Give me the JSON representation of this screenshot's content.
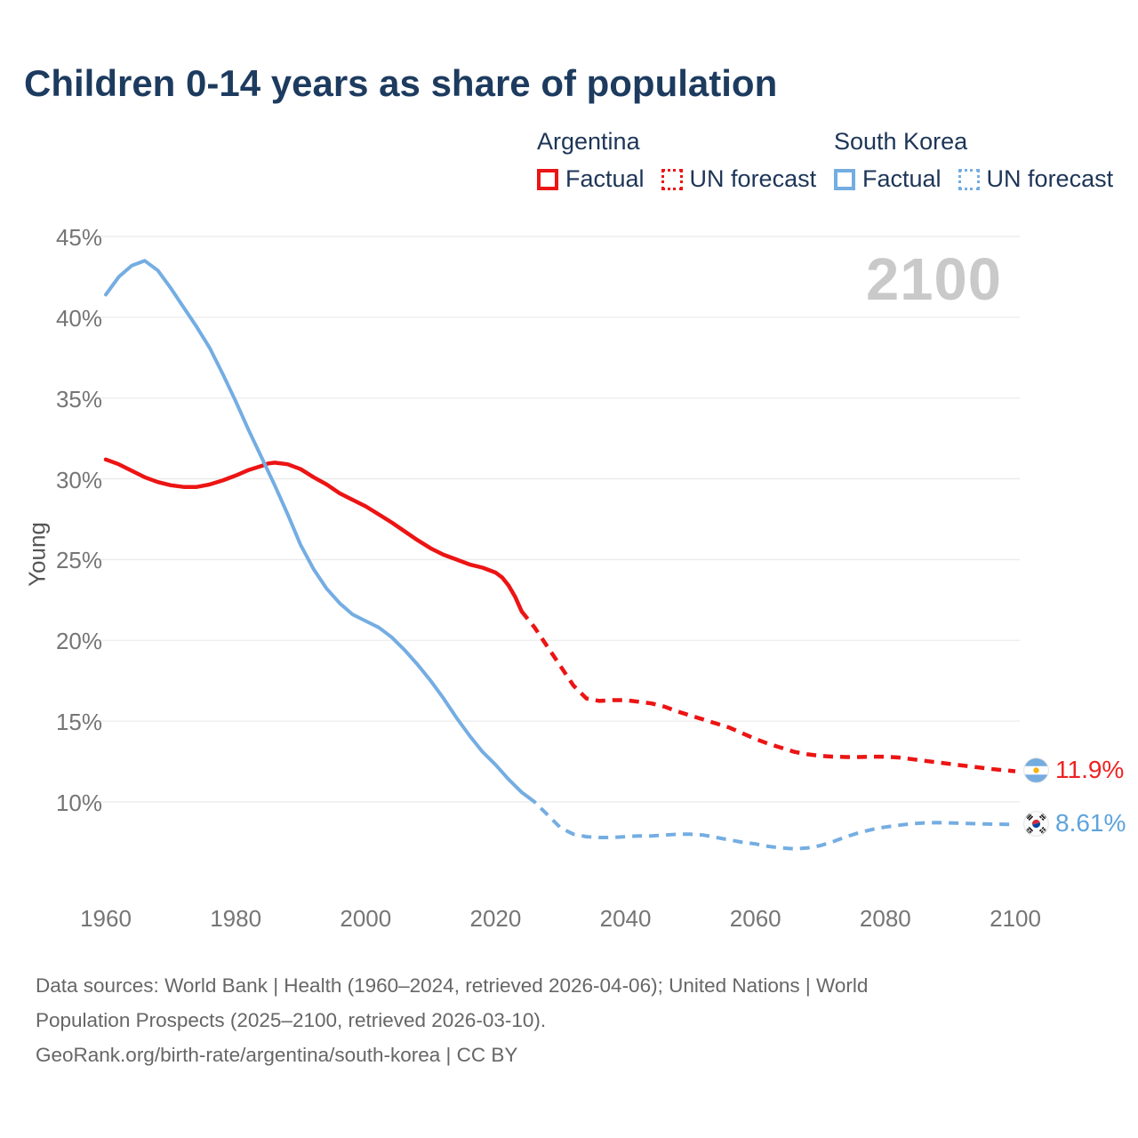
{
  "header": {
    "title": "Children 0-14 years as share of population"
  },
  "legend": {
    "groups": [
      {
        "country": "Argentina",
        "factual_label": "Factual",
        "forecast_label": "UN forecast",
        "color": "#ec1414"
      },
      {
        "country": "South Korea",
        "factual_label": "Factual",
        "forecast_label": "UN forecast",
        "color": "#74ade2"
      }
    ]
  },
  "chart": {
    "watermark": "2100",
    "y_axis_title": "Young"
  },
  "chart_data": {
    "type": "line",
    "title": "Children 0-14 years as share of population",
    "ylabel": "Young",
    "unit": "%",
    "grid": true,
    "legend_position": "top-right",
    "xlim": [
      1960,
      2100
    ],
    "ylim_gridlines": [
      10,
      45
    ],
    "x_ticks": [
      1960,
      1980,
      2000,
      2020,
      2040,
      2060,
      2080,
      2100
    ],
    "y_ticks": [
      10,
      15,
      20,
      25,
      30,
      35,
      40,
      45
    ],
    "watermark": "2100",
    "series": [
      {
        "name": "Argentina Factual",
        "color": "#ec1414",
        "style": "solid",
        "width": 4.5,
        "points": [
          [
            1960,
            31.2
          ],
          [
            1962,
            30.9
          ],
          [
            1964,
            30.5
          ],
          [
            1966,
            30.1
          ],
          [
            1968,
            29.8
          ],
          [
            1970,
            29.6
          ],
          [
            1972,
            29.5
          ],
          [
            1974,
            29.5
          ],
          [
            1976,
            29.65
          ],
          [
            1978,
            29.9
          ],
          [
            1980,
            30.2
          ],
          [
            1982,
            30.55
          ],
          [
            1984,
            30.8
          ],
          [
            1985,
            30.95
          ],
          [
            1986,
            31.0
          ],
          [
            1988,
            30.9
          ],
          [
            1990,
            30.6
          ],
          [
            1992,
            30.1
          ],
          [
            1994,
            29.65
          ],
          [
            1996,
            29.1
          ],
          [
            1998,
            28.7
          ],
          [
            2000,
            28.3
          ],
          [
            2002,
            27.8
          ],
          [
            2004,
            27.3
          ],
          [
            2006,
            26.75
          ],
          [
            2008,
            26.2
          ],
          [
            2010,
            25.7
          ],
          [
            2012,
            25.3
          ],
          [
            2014,
            25.0
          ],
          [
            2016,
            24.7
          ],
          [
            2018,
            24.5
          ],
          [
            2020,
            24.2
          ],
          [
            2021,
            23.9
          ],
          [
            2022,
            23.4
          ],
          [
            2023,
            22.7
          ],
          [
            2024,
            21.8
          ]
        ]
      },
      {
        "name": "Argentina UN forecast",
        "color": "#ec1414",
        "style": "dashed",
        "width": 4.5,
        "points": [
          [
            2024,
            21.8
          ],
          [
            2025,
            21.3
          ],
          [
            2026,
            20.8
          ],
          [
            2028,
            19.6
          ],
          [
            2030,
            18.4
          ],
          [
            2032,
            17.2
          ],
          [
            2034,
            16.4
          ],
          [
            2036,
            16.25
          ],
          [
            2038,
            16.3
          ],
          [
            2040,
            16.3
          ],
          [
            2042,
            16.2
          ],
          [
            2044,
            16.1
          ],
          [
            2046,
            15.9
          ],
          [
            2048,
            15.6
          ],
          [
            2050,
            15.35
          ],
          [
            2052,
            15.1
          ],
          [
            2054,
            14.85
          ],
          [
            2056,
            14.6
          ],
          [
            2058,
            14.25
          ],
          [
            2060,
            13.9
          ],
          [
            2062,
            13.6
          ],
          [
            2064,
            13.35
          ],
          [
            2066,
            13.1
          ],
          [
            2068,
            12.95
          ],
          [
            2070,
            12.85
          ],
          [
            2072,
            12.8
          ],
          [
            2074,
            12.78
          ],
          [
            2076,
            12.78
          ],
          [
            2078,
            12.8
          ],
          [
            2080,
            12.8
          ],
          [
            2082,
            12.75
          ],
          [
            2084,
            12.65
          ],
          [
            2086,
            12.55
          ],
          [
            2088,
            12.45
          ],
          [
            2090,
            12.35
          ],
          [
            2092,
            12.25
          ],
          [
            2094,
            12.15
          ],
          [
            2096,
            12.05
          ],
          [
            2098,
            11.97
          ],
          [
            2100,
            11.9
          ]
        ]
      },
      {
        "name": "South Korea Factual",
        "color": "#74ade2",
        "style": "solid",
        "width": 4,
        "points": [
          [
            1960,
            41.4
          ],
          [
            1962,
            42.5
          ],
          [
            1964,
            43.2
          ],
          [
            1966,
            43.5
          ],
          [
            1968,
            42.9
          ],
          [
            1970,
            41.8
          ],
          [
            1972,
            40.6
          ],
          [
            1974,
            39.4
          ],
          [
            1976,
            38.1
          ],
          [
            1978,
            36.5
          ],
          [
            1980,
            34.8
          ],
          [
            1982,
            33.0
          ],
          [
            1984,
            31.3
          ],
          [
            1986,
            29.6
          ],
          [
            1988,
            27.8
          ],
          [
            1990,
            25.9
          ],
          [
            1992,
            24.4
          ],
          [
            1994,
            23.2
          ],
          [
            1996,
            22.3
          ],
          [
            1998,
            21.6
          ],
          [
            2000,
            21.2
          ],
          [
            2002,
            20.8
          ],
          [
            2004,
            20.2
          ],
          [
            2006,
            19.4
          ],
          [
            2008,
            18.5
          ],
          [
            2010,
            17.5
          ],
          [
            2012,
            16.4
          ],
          [
            2014,
            15.2
          ],
          [
            2016,
            14.1
          ],
          [
            2018,
            13.1
          ],
          [
            2020,
            12.3
          ],
          [
            2022,
            11.4
          ],
          [
            2024,
            10.6
          ],
          [
            2025,
            10.3
          ]
        ]
      },
      {
        "name": "South Korea UN forecast",
        "color": "#74ade2",
        "style": "dashed",
        "width": 4,
        "points": [
          [
            2025,
            10.3
          ],
          [
            2026,
            10.0
          ],
          [
            2027,
            9.6
          ],
          [
            2028,
            9.2
          ],
          [
            2030,
            8.4
          ],
          [
            2032,
            8.0
          ],
          [
            2034,
            7.85
          ],
          [
            2036,
            7.8
          ],
          [
            2038,
            7.8
          ],
          [
            2040,
            7.85
          ],
          [
            2042,
            7.9
          ],
          [
            2044,
            7.9
          ],
          [
            2046,
            7.95
          ],
          [
            2048,
            8.0
          ],
          [
            2050,
            8.0
          ],
          [
            2052,
            7.95
          ],
          [
            2054,
            7.8
          ],
          [
            2056,
            7.65
          ],
          [
            2058,
            7.5
          ],
          [
            2060,
            7.4
          ],
          [
            2062,
            7.25
          ],
          [
            2064,
            7.15
          ],
          [
            2066,
            7.1
          ],
          [
            2068,
            7.15
          ],
          [
            2070,
            7.3
          ],
          [
            2072,
            7.55
          ],
          [
            2074,
            7.85
          ],
          [
            2076,
            8.1
          ],
          [
            2078,
            8.3
          ],
          [
            2080,
            8.45
          ],
          [
            2082,
            8.55
          ],
          [
            2084,
            8.65
          ],
          [
            2086,
            8.7
          ],
          [
            2088,
            8.72
          ],
          [
            2090,
            8.7
          ],
          [
            2092,
            8.68
          ],
          [
            2094,
            8.65
          ],
          [
            2096,
            8.63
          ],
          [
            2098,
            8.62
          ],
          [
            2100,
            8.61
          ]
        ]
      }
    ],
    "end_labels": [
      {
        "country": "Argentina",
        "label": "11.9%",
        "color": "#ee2222"
      },
      {
        "country": "South Korea",
        "label": "8.61%",
        "color": "#5ea3dc"
      }
    ]
  },
  "footer": {
    "line1": "Data sources: World Bank | Health (1960–2024, retrieved 2026-04-06); United Nations | World",
    "line2": "Population Prospects (2025–2100, retrieved 2026-03-10).",
    "line3": "GeoRank.org/birth-rate/argentina/south-korea | CC BY"
  }
}
